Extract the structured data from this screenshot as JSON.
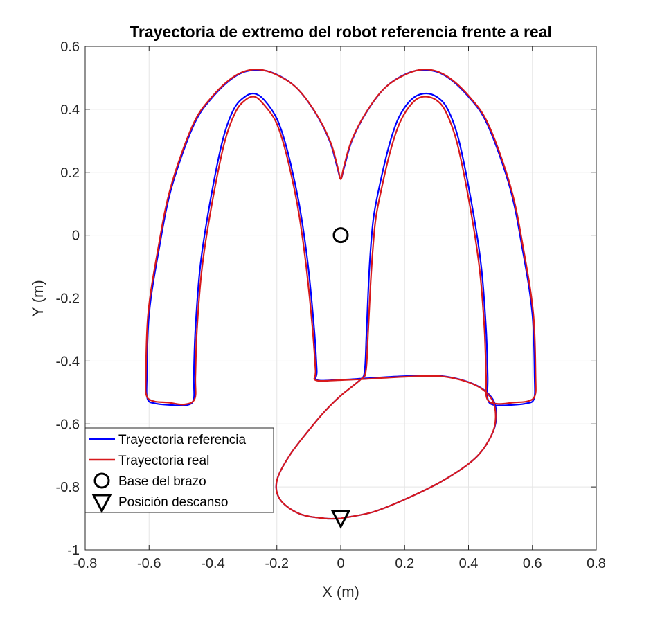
{
  "chart_data": {
    "type": "line",
    "title": "Trayectoria de extremo del robot referencia frente a real",
    "xlabel": "X (m)",
    "ylabel": "Y (m)",
    "xlim": [
      -0.8,
      0.8
    ],
    "ylim": [
      -1,
      0.6
    ],
    "xticks": [
      -0.8,
      -0.6,
      -0.4,
      -0.2,
      0,
      0.2,
      0.4,
      0.6,
      0.8
    ],
    "xtick_labels": [
      "-0.8",
      "-0.6",
      "-0.4",
      "-0.2",
      "0",
      "0.2",
      "0.4",
      "0.6",
      "0.8"
    ],
    "yticks": [
      -1,
      -0.8,
      -0.6,
      -0.4,
      -0.2,
      0,
      0.2,
      0.4,
      0.6
    ],
    "ytick_labels": [
      "-1",
      "-0.8",
      "-0.6",
      "-0.4",
      "-0.2",
      "0",
      "0.2",
      "0.4",
      "0.6"
    ],
    "grid": true,
    "legend_position": "bottom-left",
    "series": [
      {
        "name": "Trayectoria referencia",
        "color": "#0000ff",
        "points": [
          [
            0,
            -0.9
          ],
          [
            0.1,
            -0.88
          ],
          [
            0.2,
            -0.84
          ],
          [
            0.32,
            -0.78
          ],
          [
            0.42,
            -0.71
          ],
          [
            0.47,
            -0.64
          ],
          [
            0.487,
            -0.58
          ],
          [
            0.475,
            -0.52
          ],
          [
            0.42,
            -0.475
          ],
          [
            0.32,
            -0.448
          ],
          [
            0.2,
            -0.448
          ],
          [
            0.08,
            -0.455
          ],
          [
            -0.01,
            -0.46
          ],
          [
            -0.075,
            -0.46
          ],
          [
            -0.075,
            -0.43
          ],
          [
            -0.083,
            -0.3
          ],
          [
            -0.102,
            -0.1
          ],
          [
            -0.122,
            0.05
          ],
          [
            -0.14,
            0.15
          ],
          [
            -0.17,
            0.28
          ],
          [
            -0.2,
            0.37
          ],
          [
            -0.24,
            0.43
          ],
          [
            -0.27,
            0.45
          ],
          [
            -0.3,
            0.44
          ],
          [
            -0.335,
            0.4
          ],
          [
            -0.37,
            0.3
          ],
          [
            -0.41,
            0.1
          ],
          [
            -0.44,
            -0.1
          ],
          [
            -0.455,
            -0.3
          ],
          [
            -0.46,
            -0.45
          ],
          [
            -0.46,
            -0.52
          ],
          [
            -0.48,
            -0.54
          ],
          [
            -0.53,
            -0.54
          ],
          [
            -0.58,
            -0.535
          ],
          [
            -0.605,
            -0.52
          ],
          [
            -0.607,
            -0.45
          ],
          [
            -0.6,
            -0.25
          ],
          [
            -0.57,
            -0.05
          ],
          [
            -0.53,
            0.15
          ],
          [
            -0.46,
            0.35
          ],
          [
            -0.4,
            0.44
          ],
          [
            -0.33,
            0.505
          ],
          [
            -0.27,
            0.525
          ],
          [
            -0.21,
            0.515
          ],
          [
            -0.14,
            0.47
          ],
          [
            -0.08,
            0.39
          ],
          [
            -0.035,
            0.3
          ],
          [
            -0.012,
            0.22
          ],
          [
            0,
            0.18
          ],
          [
            0.012,
            0.22
          ],
          [
            0.035,
            0.3
          ],
          [
            0.08,
            0.39
          ],
          [
            0.14,
            0.47
          ],
          [
            0.21,
            0.515
          ],
          [
            0.27,
            0.525
          ],
          [
            0.33,
            0.505
          ],
          [
            0.4,
            0.44
          ],
          [
            0.46,
            0.35
          ],
          [
            0.53,
            0.15
          ],
          [
            0.57,
            -0.05
          ],
          [
            0.6,
            -0.25
          ],
          [
            0.607,
            -0.45
          ],
          [
            0.605,
            -0.52
          ],
          [
            0.58,
            -0.535
          ],
          [
            0.53,
            -0.54
          ],
          [
            0.48,
            -0.54
          ],
          [
            0.46,
            -0.52
          ],
          [
            0.46,
            -0.45
          ],
          [
            0.455,
            -0.3
          ],
          [
            0.44,
            -0.1
          ],
          [
            0.41,
            0.1
          ],
          [
            0.37,
            0.3
          ],
          [
            0.335,
            0.4
          ],
          [
            0.3,
            0.44
          ],
          [
            0.26,
            0.45
          ],
          [
            0.22,
            0.43
          ],
          [
            0.18,
            0.37
          ],
          [
            0.15,
            0.28
          ],
          [
            0.12,
            0.15
          ],
          [
            0.102,
            0.05
          ],
          [
            0.09,
            -0.1
          ],
          [
            0.081,
            -0.3
          ],
          [
            0.075,
            -0.43
          ],
          [
            0.06,
            -0.46
          ],
          [
            0.0,
            -0.51
          ],
          [
            -0.05,
            -0.56
          ],
          [
            -0.1,
            -0.62
          ],
          [
            -0.16,
            -0.7
          ],
          [
            -0.2,
            -0.78
          ],
          [
            -0.19,
            -0.84
          ],
          [
            -0.13,
            -0.885
          ],
          [
            -0.05,
            -0.9
          ],
          [
            0,
            -0.9
          ]
        ]
      },
      {
        "name": "Trayectoria real",
        "color": "#d7191c",
        "points": [
          [
            0,
            -0.9
          ],
          [
            0.1,
            -0.88
          ],
          [
            0.2,
            -0.84
          ],
          [
            0.32,
            -0.78
          ],
          [
            0.42,
            -0.71
          ],
          [
            0.47,
            -0.64
          ],
          [
            0.485,
            -0.58
          ],
          [
            0.472,
            -0.52
          ],
          [
            0.42,
            -0.476
          ],
          [
            0.32,
            -0.449
          ],
          [
            0.2,
            -0.45
          ],
          [
            0.08,
            -0.457
          ],
          [
            -0.01,
            -0.461
          ],
          [
            -0.078,
            -0.461
          ],
          [
            -0.079,
            -0.43
          ],
          [
            -0.088,
            -0.3
          ],
          [
            -0.108,
            -0.1
          ],
          [
            -0.128,
            0.05
          ],
          [
            -0.146,
            0.15
          ],
          [
            -0.176,
            0.28
          ],
          [
            -0.205,
            0.365
          ],
          [
            -0.245,
            0.42
          ],
          [
            -0.27,
            0.44
          ],
          [
            -0.298,
            0.43
          ],
          [
            -0.33,
            0.39
          ],
          [
            -0.365,
            0.29
          ],
          [
            -0.405,
            0.09
          ],
          [
            -0.435,
            -0.11
          ],
          [
            -0.45,
            -0.3
          ],
          [
            -0.455,
            -0.45
          ],
          [
            -0.457,
            -0.52
          ],
          [
            -0.49,
            -0.538
          ],
          [
            -0.54,
            -0.532
          ],
          [
            -0.585,
            -0.528
          ],
          [
            -0.608,
            -0.51
          ],
          [
            -0.61,
            -0.45
          ],
          [
            -0.603,
            -0.25
          ],
          [
            -0.573,
            -0.05
          ],
          [
            -0.533,
            0.15
          ],
          [
            -0.463,
            0.35
          ],
          [
            -0.403,
            0.44
          ],
          [
            -0.333,
            0.505
          ],
          [
            -0.27,
            0.527
          ],
          [
            -0.208,
            0.513
          ],
          [
            -0.138,
            0.468
          ],
          [
            -0.078,
            0.388
          ],
          [
            -0.033,
            0.298
          ],
          [
            -0.01,
            0.218
          ],
          [
            0,
            0.178
          ],
          [
            0.01,
            0.218
          ],
          [
            0.033,
            0.298
          ],
          [
            0.078,
            0.388
          ],
          [
            0.138,
            0.468
          ],
          [
            0.208,
            0.513
          ],
          [
            0.27,
            0.527
          ],
          [
            0.333,
            0.505
          ],
          [
            0.403,
            0.44
          ],
          [
            0.463,
            0.35
          ],
          [
            0.533,
            0.15
          ],
          [
            0.573,
            -0.05
          ],
          [
            0.603,
            -0.25
          ],
          [
            0.61,
            -0.45
          ],
          [
            0.608,
            -0.51
          ],
          [
            0.585,
            -0.528
          ],
          [
            0.54,
            -0.532
          ],
          [
            0.49,
            -0.536
          ],
          [
            0.458,
            -0.52
          ],
          [
            0.455,
            -0.45
          ],
          [
            0.45,
            -0.3
          ],
          [
            0.435,
            -0.11
          ],
          [
            0.405,
            0.09
          ],
          [
            0.365,
            0.29
          ],
          [
            0.33,
            0.39
          ],
          [
            0.298,
            0.43
          ],
          [
            0.258,
            0.44
          ],
          [
            0.224,
            0.42
          ],
          [
            0.186,
            0.36
          ],
          [
            0.156,
            0.27
          ],
          [
            0.126,
            0.14
          ],
          [
            0.108,
            0.04
          ],
          [
            0.096,
            -0.11
          ],
          [
            0.086,
            -0.3
          ],
          [
            0.079,
            -0.43
          ],
          [
            0.062,
            -0.459
          ],
          [
            0.0,
            -0.51
          ],
          [
            -0.05,
            -0.56
          ],
          [
            -0.1,
            -0.62
          ],
          [
            -0.16,
            -0.7
          ],
          [
            -0.2,
            -0.78
          ],
          [
            -0.19,
            -0.84
          ],
          [
            -0.13,
            -0.885
          ],
          [
            -0.05,
            -0.9
          ],
          [
            0,
            -0.9
          ]
        ]
      },
      {
        "name": "Base del brazo",
        "marker": "circle",
        "color": "#000000",
        "points": [
          [
            0,
            0
          ]
        ]
      },
      {
        "name": "Posición descanso",
        "marker": "triangle-down",
        "color": "#000000",
        "points": [
          [
            0,
            -0.9
          ]
        ]
      }
    ]
  }
}
